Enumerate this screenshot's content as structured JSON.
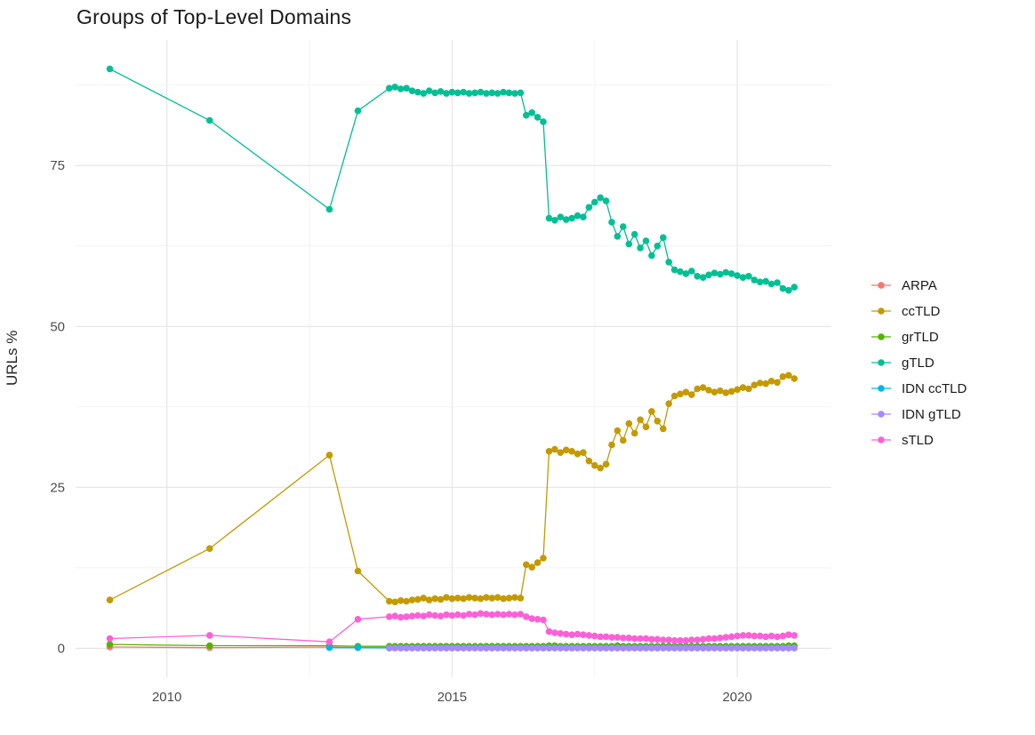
{
  "chart": {
    "title": "Groups of Top-Level Domains",
    "ylabel": "URLs %",
    "background": "#ffffff",
    "grid_major_color": "#e4e4e4",
    "grid_minor_color": "#f2f2f2",
    "axis_text_color": "#4d4d4d",
    "title_color": "#1a1a1a"
  },
  "chart_data": {
    "type": "line",
    "title": "Groups of Top-Level Domains",
    "xlabel": "",
    "ylabel": "URLs %",
    "legend_position": "right",
    "grid": true,
    "xlim": [
      2008.4,
      2021.65
    ],
    "ylim": [
      -4.5,
      94.5
    ],
    "x_ticks": [
      2010,
      2015,
      2020
    ],
    "y_ticks": [
      0,
      25,
      50,
      75
    ],
    "x_minor": [
      2012.5,
      2017.5
    ],
    "y_minor": [
      12.5,
      37.5,
      62.5,
      87.5
    ],
    "x": [
      2009,
      2010.75,
      2012.85,
      2013.35,
      2013.9,
      2014,
      2014.1,
      2014.2,
      2014.3,
      2014.4,
      2014.5,
      2014.6,
      2014.7,
      2014.8,
      2014.9,
      2015,
      2015.1,
      2015.2,
      2015.3,
      2015.4,
      2015.5,
      2015.6,
      2015.7,
      2015.8,
      2015.9,
      2016,
      2016.1,
      2016.2,
      2016.3,
      2016.4,
      2016.5,
      2016.6,
      2016.7,
      2016.8,
      2016.9,
      2017,
      2017.1,
      2017.2,
      2017.3,
      2017.4,
      2017.5,
      2017.6,
      2017.7,
      2017.8,
      2017.9,
      2018,
      2018.1,
      2018.2,
      2018.3,
      2018.4,
      2018.5,
      2018.6,
      2018.7,
      2018.8,
      2018.9,
      2019,
      2019.1,
      2019.2,
      2019.3,
      2019.4,
      2019.5,
      2019.6,
      2019.7,
      2019.8,
      2019.9,
      2020,
      2020.1,
      2020.2,
      2020.3,
      2020.4,
      2020.5,
      2020.6,
      2020.7,
      2020.8,
      2020.9,
      2021
    ],
    "series": [
      {
        "name": "ARPA",
        "color": "#F8766D",
        "values": [
          0.2,
          0.1,
          0.2,
          0.1,
          0.1,
          0.1,
          0.1,
          0.1,
          0.1,
          0.1,
          0.1,
          0.1,
          0.1,
          0.1,
          0.1,
          0.1,
          0.1,
          0.1,
          0.1,
          0.1,
          0.1,
          0.1,
          0.1,
          0.1,
          0.1,
          0.1,
          0.1,
          0.1,
          0.1,
          0.1,
          0.1,
          0.1,
          0.1,
          0.1,
          0.1,
          0.1,
          0.1,
          0.1,
          0.1,
          0.1,
          0.1,
          0.1,
          0.1,
          0.1,
          0.1,
          0.1,
          0.1,
          0.1,
          0.1,
          0.1,
          0.1,
          0.1,
          0.1,
          0.1,
          0.1,
          0.1,
          0.1,
          0.1,
          0.1,
          0.1,
          0.1,
          0.1,
          0.1,
          0.1,
          0.1,
          0.1,
          0.1,
          0.1,
          0.1,
          0.1,
          0.1,
          0.1,
          0.1,
          0.1,
          0.1,
          0.1
        ]
      },
      {
        "name": "ccTLD",
        "color": "#C49A00",
        "values": [
          7.5,
          15.5,
          30.0,
          12.0,
          7.3,
          7.2,
          7.4,
          7.3,
          7.5,
          7.6,
          7.8,
          7.5,
          7.7,
          7.6,
          7.9,
          7.7,
          7.8,
          7.7,
          7.9,
          7.8,
          7.7,
          7.9,
          7.8,
          7.9,
          7.7,
          7.8,
          7.9,
          7.8,
          13.0,
          12.6,
          13.3,
          14.0,
          30.6,
          30.9,
          30.4,
          30.8,
          30.6,
          30.2,
          30.4,
          29.1,
          28.4,
          28.0,
          28.6,
          31.6,
          33.8,
          32.3,
          34.9,
          33.4,
          35.5,
          34.4,
          36.8,
          35.3,
          34.1,
          38.0,
          39.2,
          39.5,
          39.8,
          39.4,
          40.3,
          40.5,
          40.1,
          39.8,
          40.0,
          39.7,
          39.9,
          40.2,
          40.5,
          40.3,
          40.9,
          41.2,
          41.1,
          41.5,
          41.3,
          42.2,
          42.4,
          41.9
        ]
      },
      {
        "name": "grTLD",
        "color": "#53B400",
        "values": [
          0.6,
          0.4,
          0.4,
          0.3,
          0.3,
          0.3,
          0.3,
          0.3,
          0.3,
          0.3,
          0.3,
          0.3,
          0.3,
          0.3,
          0.3,
          0.3,
          0.3,
          0.3,
          0.3,
          0.3,
          0.3,
          0.3,
          0.3,
          0.3,
          0.3,
          0.3,
          0.3,
          0.3,
          0.3,
          0.3,
          0.3,
          0.3,
          0.4,
          0.4,
          0.3,
          0.3,
          0.3,
          0.3,
          0.3,
          0.3,
          0.3,
          0.3,
          0.3,
          0.3,
          0.4,
          0.3,
          0.3,
          0.3,
          0.3,
          0.3,
          0.3,
          0.3,
          0.3,
          0.3,
          0.3,
          0.3,
          0.3,
          0.3,
          0.3,
          0.3,
          0.3,
          0.3,
          0.3,
          0.3,
          0.3,
          0.3,
          0.3,
          0.3,
          0.3,
          0.3,
          0.3,
          0.3,
          0.3,
          0.3,
          0.4,
          0.4
        ]
      },
      {
        "name": "gTLD",
        "color": "#00C094",
        "values": [
          90.0,
          82.0,
          68.2,
          83.5,
          87.0,
          87.2,
          86.9,
          87.0,
          86.6,
          86.4,
          86.2,
          86.6,
          86.3,
          86.5,
          86.2,
          86.4,
          86.3,
          86.4,
          86.2,
          86.3,
          86.4,
          86.2,
          86.3,
          86.2,
          86.4,
          86.3,
          86.2,
          86.3,
          82.8,
          83.2,
          82.5,
          81.8,
          66.8,
          66.5,
          67.0,
          66.6,
          66.8,
          67.2,
          67.0,
          68.5,
          69.3,
          70.0,
          69.5,
          66.2,
          64.0,
          65.5,
          62.8,
          64.3,
          62.2,
          63.3,
          61.0,
          62.5,
          63.8,
          60.0,
          58.8,
          58.5,
          58.2,
          58.6,
          57.8,
          57.6,
          58.0,
          58.3,
          58.1,
          58.4,
          58.2,
          57.9,
          57.6,
          57.8,
          57.2,
          56.9,
          57.0,
          56.6,
          56.8,
          55.9,
          55.6,
          56.1
        ]
      },
      {
        "name": "IDN ccTLD",
        "color": "#00B6EB",
        "values": [
          null,
          null,
          0.1,
          0.1,
          0.05,
          0.05,
          0.05,
          0.05,
          0.05,
          0.05,
          0.05,
          0.05,
          0.05,
          0.05,
          0.05,
          0.05,
          0.05,
          0.05,
          0.05,
          0.05,
          0.05,
          0.05,
          0.05,
          0.05,
          0.05,
          0.05,
          0.05,
          0.05,
          0.05,
          0.05,
          0.05,
          0.05,
          0.05,
          0.05,
          0.05,
          0.05,
          0.05,
          0.05,
          0.05,
          0.05,
          0.05,
          0.05,
          0.05,
          0.05,
          0.05,
          0.05,
          0.05,
          0.05,
          0.05,
          0.05,
          0.05,
          0.05,
          0.05,
          0.05,
          0.05,
          0.05,
          0.05,
          0.05,
          0.05,
          0.05,
          0.05,
          0.05,
          0.05,
          0.05,
          0.05,
          0.05,
          0.05,
          0.05,
          0.05,
          0.05,
          0.05,
          0.05,
          0.05,
          0.05,
          0.05,
          0.05
        ]
      },
      {
        "name": "IDN gTLD",
        "color": "#A58AFF",
        "values": [
          null,
          null,
          null,
          null,
          0.03,
          0.03,
          0.03,
          0.03,
          0.03,
          0.03,
          0.03,
          0.03,
          0.03,
          0.03,
          0.03,
          0.03,
          0.03,
          0.03,
          0.03,
          0.03,
          0.03,
          0.03,
          0.03,
          0.03,
          0.03,
          0.03,
          0.03,
          0.03,
          0.03,
          0.03,
          0.03,
          0.03,
          0.03,
          0.03,
          0.03,
          0.03,
          0.03,
          0.03,
          0.03,
          0.03,
          0.03,
          0.03,
          0.03,
          0.03,
          0.03,
          0.03,
          0.03,
          0.03,
          0.03,
          0.03,
          0.03,
          0.03,
          0.03,
          0.03,
          0.03,
          0.03,
          0.03,
          0.03,
          0.03,
          0.03,
          0.03,
          0.03,
          0.03,
          0.03,
          0.03,
          0.03,
          0.03,
          0.03,
          0.03,
          0.03,
          0.03,
          0.03,
          0.03,
          0.03,
          0.03,
          0.03
        ]
      },
      {
        "name": "sTLD",
        "color": "#FB61D7",
        "values": [
          1.5,
          2.0,
          1.0,
          4.5,
          4.9,
          5.0,
          4.8,
          4.9,
          5.0,
          5.1,
          5.0,
          5.2,
          5.1,
          5.0,
          5.2,
          5.1,
          5.2,
          5.1,
          5.3,
          5.2,
          5.4,
          5.3,
          5.2,
          5.3,
          5.2,
          5.3,
          5.2,
          5.3,
          4.9,
          4.6,
          4.5,
          4.4,
          2.6,
          2.4,
          2.3,
          2.2,
          2.1,
          2.2,
          2.1,
          2.0,
          1.9,
          1.8,
          1.8,
          1.7,
          1.7,
          1.6,
          1.6,
          1.5,
          1.5,
          1.5,
          1.4,
          1.4,
          1.3,
          1.3,
          1.2,
          1.2,
          1.2,
          1.3,
          1.3,
          1.4,
          1.5,
          1.5,
          1.6,
          1.7,
          1.8,
          1.9,
          2.0,
          2.0,
          1.9,
          1.9,
          1.8,
          1.9,
          1.8,
          1.9,
          2.1,
          2.0
        ]
      }
    ]
  }
}
